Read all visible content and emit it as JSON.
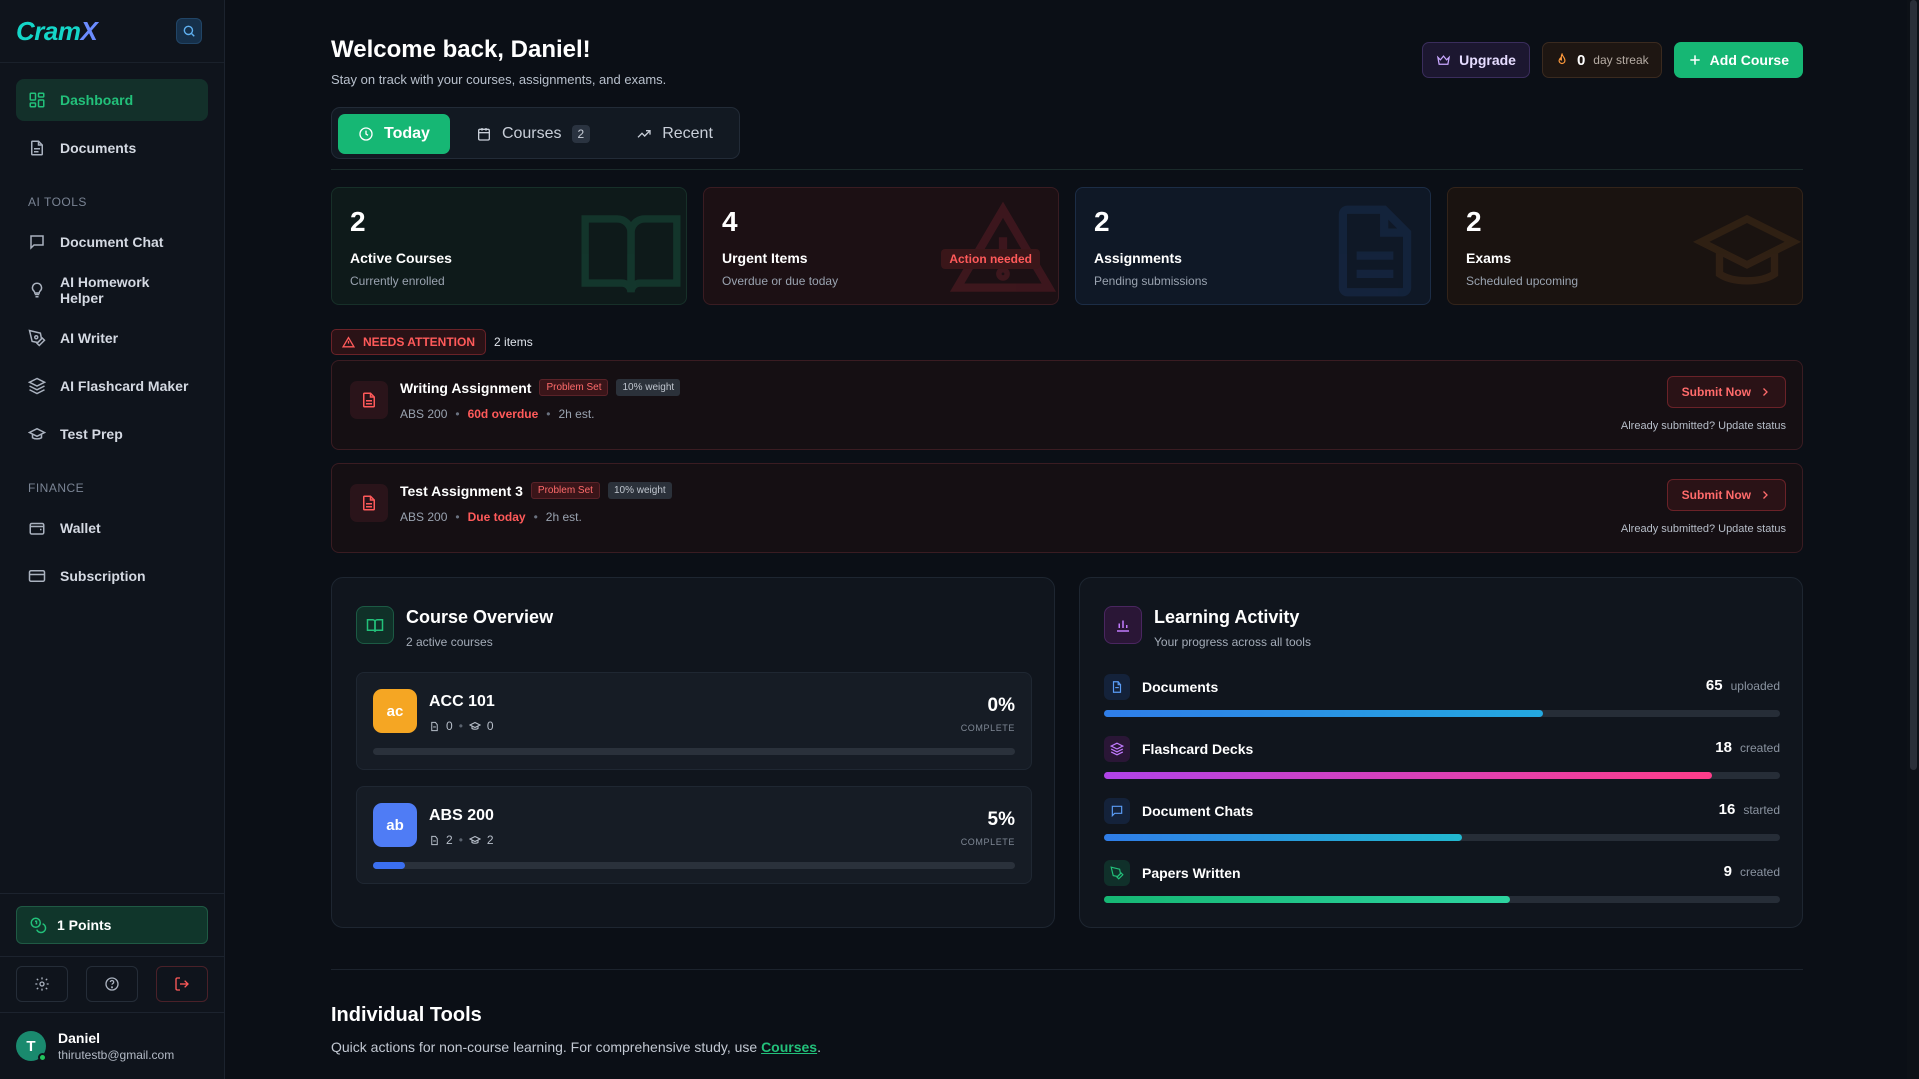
{
  "brand": {
    "logo_a": "Cram",
    "logo_b": "X"
  },
  "sidebar": {
    "items": [
      {
        "label": "Dashboard",
        "icon": "dashboard-icon",
        "active": true
      },
      {
        "label": "Documents",
        "icon": "document-icon"
      }
    ],
    "ai_tools_label": "AI TOOLS",
    "ai_tools": [
      {
        "label": "Document Chat",
        "icon": "chat-icon"
      },
      {
        "label": "AI Homework Helper",
        "icon": "lightbulb-icon"
      },
      {
        "label": "AI Writer",
        "icon": "pen-icon"
      },
      {
        "label": "AI Flashcard Maker",
        "icon": "layers-icon"
      },
      {
        "label": "Test Prep",
        "icon": "graduation-cap-icon"
      }
    ],
    "finance_label": "FINANCE",
    "finance": [
      {
        "label": "Wallet",
        "icon": "wallet-icon"
      },
      {
        "label": "Subscription",
        "icon": "credit-card-icon"
      }
    ],
    "points": "1 Points",
    "user": {
      "initial": "T",
      "name": "Daniel",
      "email": "thirutestb@gmail.com"
    }
  },
  "header": {
    "title": "Welcome back, Daniel!",
    "subtitle": "Stay on track with your courses, assignments, and exams.",
    "upgrade": "Upgrade",
    "streak_value": "0",
    "streak_label": "day streak",
    "add_course": "Add Course"
  },
  "tabs": [
    {
      "label": "Today",
      "active": true
    },
    {
      "label": "Courses",
      "count": "2"
    },
    {
      "label": "Recent"
    }
  ],
  "stats": [
    {
      "value": "2",
      "title": "Active Courses",
      "desc": "Currently enrolled"
    },
    {
      "value": "4",
      "title": "Urgent Items",
      "desc": "Overdue or due today",
      "badge": "Action needed"
    },
    {
      "value": "2",
      "title": "Assignments",
      "desc": "Pending submissions"
    },
    {
      "value": "2",
      "title": "Exams",
      "desc": "Scheduled upcoming"
    }
  ],
  "attention": {
    "label": "NEEDS ATTENTION",
    "count": "2 items",
    "items": [
      {
        "title": "Writing Assignment",
        "type": "Problem Set",
        "weight": "10% weight",
        "course": "ABS 200",
        "due": "60d overdue",
        "est": "2h est.",
        "submit": "Submit Now",
        "note": "Already submitted? Update status"
      },
      {
        "title": "Test Assignment 3",
        "type": "Problem Set",
        "weight": "10% weight",
        "course": "ABS 200",
        "due": "Due today",
        "est": "2h est.",
        "submit": "Submit Now",
        "note": "Already submitted? Update status"
      }
    ]
  },
  "course_overview": {
    "title": "Course Overview",
    "subtitle": "2 active courses",
    "courses": [
      {
        "abbr": "ac",
        "name": "ACC 101",
        "docs": "0",
        "exams": "0",
        "pct": "0%",
        "progress": 0,
        "complete_label": "COMPLETE",
        "color": "#f5a623"
      },
      {
        "abbr": "ab",
        "name": "ABS 200",
        "docs": "2",
        "exams": "2",
        "pct": "5%",
        "progress": 0.05,
        "complete_label": "COMPLETE",
        "color": "#4f7cf5"
      }
    ]
  },
  "learning_activity": {
    "title": "Learning Activity",
    "subtitle": "Your progress across all tools",
    "items": [
      {
        "name": "Documents",
        "value": "65",
        "unit": "uploaded",
        "progress": 0.65,
        "icon": "document-icon"
      },
      {
        "name": "Flashcard Decks",
        "value": "18",
        "unit": "created",
        "progress": 0.9,
        "icon": "layers-icon"
      },
      {
        "name": "Document Chats",
        "value": "16",
        "unit": "started",
        "progress": 0.53,
        "icon": "chat-icon"
      },
      {
        "name": "Papers Written",
        "value": "9",
        "unit": "created",
        "progress": 0.6,
        "icon": "pen-icon"
      }
    ]
  },
  "tools": {
    "title": "Individual Tools",
    "subtitle_pre": "Quick actions for non-course learning. For comprehensive study, use ",
    "link": "Courses",
    "subtitle_post": "."
  }
}
